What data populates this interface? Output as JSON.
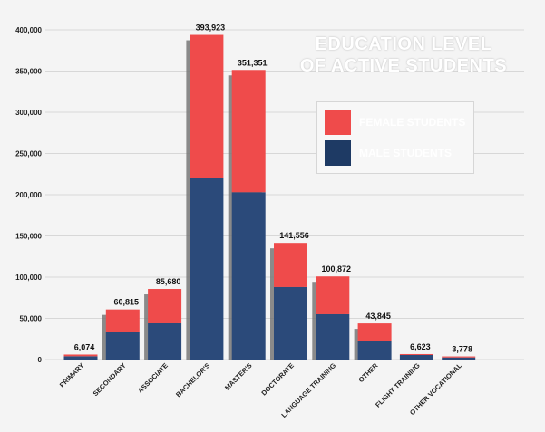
{
  "chart_data": {
    "type": "bar",
    "stacked": true,
    "title_lines": [
      "EDUCATION LEVEL",
      "OF ACTIVE STUDENTS"
    ],
    "categories": [
      "PRIMARY",
      "SECONDARY",
      "ASSOCIATE",
      "BACHELOR'S",
      "MASTER'S",
      "DOCTORATE",
      "LANGUAGE TRAINING",
      "OTHER",
      "FLIGHT TRAINING",
      "OTHER VOCATIONAL"
    ],
    "totals": [
      6074,
      60815,
      85680,
      393923,
      351351,
      141556,
      100872,
      43845,
      6623,
      3778
    ],
    "total_labels": [
      "6,074",
      "60,815",
      "85,680",
      "393,923",
      "351,351",
      "141,556",
      "100,872",
      "43,845",
      "6,623",
      "3,778"
    ],
    "series": [
      {
        "name": "MALE STUDENTS",
        "color": "#2b4a7a",
        "values": [
          4000,
          33000,
          44000,
          220000,
          203000,
          88000,
          55000,
          23000,
          5500,
          2500
        ]
      },
      {
        "name": "FEMALE STUDENTS",
        "color": "#ef4b4b",
        "values": [
          2074,
          27815,
          41680,
          173923,
          148351,
          53556,
          45872,
          20845,
          1123,
          1278
        ]
      }
    ],
    "yticks": [
      0,
      50000,
      100000,
      150000,
      200000,
      250000,
      300000,
      350000,
      400000
    ],
    "ytick_labels": [
      "0",
      "50,000",
      "100,000",
      "150,000",
      "200,000",
      "250,000",
      "300,000",
      "350,000",
      "400,000"
    ],
    "ylim": [
      0,
      400000
    ],
    "grid": true,
    "legend_position": "top-right",
    "legend_labels": [
      "FEMALE STUDENTS",
      "MALE STUDENTS"
    ],
    "colors": {
      "female": "#ef4b4b",
      "male": "#2b4a7a",
      "shadow": "#777777",
      "grid": "#d7d7d7",
      "title": "#ffffff",
      "legend_bg": "#1e3a64"
    }
  }
}
